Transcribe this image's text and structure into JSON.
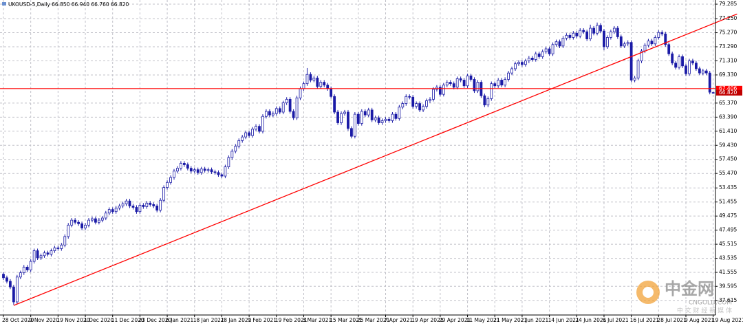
{
  "chart_data": {
    "type": "candlestick",
    "title": "UKOUSD-5,Daily 66.850 66.940 66.760 66.820",
    "color": "#1a1aa6",
    "grid": true,
    "categories": [
      "28 Oct 2020",
      null,
      null,
      null,
      null,
      null,
      null,
      null,
      "9 Nov 2020",
      null,
      null,
      null,
      null,
      null,
      null,
      null,
      "19 Nov 2020",
      null,
      null,
      null,
      null,
      null,
      null,
      null,
      "1 Dec 2020",
      null,
      null,
      null,
      null,
      null,
      null,
      null,
      "11 Dec 2020",
      null,
      null,
      null,
      null,
      null,
      null,
      null,
      "23 Dec 2020",
      null,
      null,
      null,
      null,
      null,
      null,
      null,
      "6 Jan 2021",
      null,
      null,
      null,
      null,
      null,
      null,
      null,
      "18 Jan 2021",
      null,
      null,
      null,
      null,
      null,
      null,
      null,
      "28 Jan 2021",
      null,
      null,
      null,
      null,
      null,
      null,
      null,
      "9 Feb 2021",
      null,
      null,
      null,
      null,
      null,
      null,
      null,
      "19 Feb 2021",
      null,
      null,
      null,
      null,
      null,
      null,
      null,
      "3 Mar 2021",
      null,
      null,
      null,
      null,
      null,
      null,
      null,
      "15 Mar 2021",
      null,
      null,
      null,
      null,
      null,
      null,
      null,
      "25 Mar 2021",
      null,
      null,
      null,
      null,
      null,
      null,
      null,
      "7 Apr 2021",
      null,
      null,
      null,
      null,
      null,
      null,
      null,
      "19 Apr 2021",
      null,
      null,
      null,
      null,
      null,
      null,
      null,
      "29 Apr 2021",
      null,
      null,
      null,
      null,
      null,
      null,
      null,
      "11 May 2021",
      null,
      null,
      null,
      null,
      null,
      null,
      null,
      "21 May 2021",
      null,
      null,
      null,
      null,
      null,
      null,
      null,
      "2 Jun 2021",
      null,
      null,
      null,
      null,
      null,
      null,
      null,
      "14 Jun 2021",
      null,
      null,
      null,
      null,
      null,
      null,
      null,
      "24 Jun 2021",
      null,
      null,
      null,
      null,
      null,
      null,
      null,
      "6 Jul 2021",
      null,
      null,
      null,
      null,
      null,
      null,
      null,
      "16 Jul 2021",
      null,
      null,
      null,
      null,
      null,
      null,
      null,
      "28 Jul 2021",
      null,
      null,
      null,
      null,
      null,
      null,
      null,
      "9 Aug 2021",
      null,
      null,
      null,
      null,
      null,
      null,
      null,
      "19 Aug 2021"
    ],
    "open": [
      41.3,
      40.8,
      40.3,
      39.5,
      37.4,
      40.9,
      41.5,
      42.3,
      41.9,
      43.1,
      44.6,
      43.6,
      43.9,
      44.3,
      44.1,
      44.6,
      45.0,
      44.9,
      45.4,
      46.6,
      48.2,
      48.9,
      48.6,
      48.4,
      47.8,
      48.2,
      48.9,
      49.1,
      48.6,
      48.9,
      49.2,
      49.9,
      50.4,
      50.1,
      50.6,
      50.9,
      51.2,
      51.6,
      50.9,
      50.7,
      50.1,
      51.0,
      50.8,
      51.3,
      51.1,
      50.9,
      50.3,
      51.7,
      53.5,
      54.2,
      54.9,
      55.8,
      56.2,
      56.9,
      56.7,
      56.2,
      55.8,
      56.0,
      55.6,
      56.1,
      55.9,
      56.0,
      55.7,
      55.6,
      55.3,
      55.1,
      56.4,
      57.7,
      58.6,
      59.3,
      60.1,
      60.6,
      61.2,
      60.8,
      61.7,
      62.1,
      61.4,
      63.5,
      64.2,
      63.7,
      63.9,
      64.6,
      64.1,
      65.4,
      65.9,
      64.2,
      63.3,
      66.1,
      67.4,
      68.1,
      69.4,
      68.6,
      68.9,
      67.7,
      68.3,
      67.9,
      67.4,
      66.3,
      64.1,
      62.6,
      63.9,
      64.1,
      61.8,
      60.7,
      63.8,
      62.5,
      64.2,
      63.7,
      64.4,
      63.0,
      63.3,
      62.6,
      62.9,
      63.1,
      62.9,
      63.8,
      63.2,
      64.8,
      65.3,
      66.3,
      66.2,
      64.9,
      65.3,
      64.4,
      64.9,
      65.7,
      65.9,
      67.3,
      67.6,
      66.6,
      67.9,
      68.3,
      68.1,
      67.6,
      68.8,
      68.6,
      67.8,
      69.2,
      68.7,
      67.1,
      68.3,
      66.4,
      65.1,
      66.0,
      68.1,
      67.8,
      68.6,
      67.9,
      68.7,
      69.6,
      70.2,
      70.9,
      71.1,
      70.8,
      71.3,
      71.7,
      71.5,
      72.3,
      71.9,
      72.6,
      73.0,
      72.3,
      73.6,
      74.0,
      73.4,
      74.5,
      74.9,
      74.6,
      75.2,
      74.8,
      75.6,
      75.4,
      74.4,
      75.9,
      75.2,
      76.3,
      75.5,
      73.3,
      74.6,
      75.4,
      75.9,
      74.7,
      73.4,
      73.7,
      73.9,
      68.6,
      68.9,
      71.3,
      72.7,
      73.5,
      74.1,
      73.7,
      74.6,
      75.3,
      75.1,
      73.6,
      72.3,
      71.0,
      70.4,
      71.9,
      70.6,
      69.5,
      71.3,
      71.0,
      70.2,
      69.6,
      69.9,
      69.6,
      66.85
    ],
    "high": [
      41.6,
      41.1,
      40.6,
      39.8,
      41.2,
      41.8,
      42.6,
      42.6,
      43.4,
      44.9,
      44.9,
      44.2,
      44.6,
      44.6,
      44.9,
      45.3,
      45.3,
      45.7,
      46.9,
      48.5,
      49.2,
      49.2,
      48.9,
      48.7,
      48.5,
      49.2,
      49.4,
      49.4,
      49.2,
      49.5,
      50.2,
      50.7,
      50.7,
      50.9,
      51.2,
      51.5,
      51.9,
      51.9,
      51.2,
      51.0,
      51.3,
      51.3,
      51.6,
      51.6,
      51.4,
      51.2,
      52.0,
      53.8,
      54.5,
      55.2,
      56.1,
      56.5,
      57.2,
      57.2,
      57.0,
      56.5,
      56.3,
      56.3,
      56.4,
      56.4,
      56.3,
      56.3,
      56.0,
      55.9,
      55.6,
      56.7,
      58.0,
      58.9,
      59.6,
      60.4,
      60.9,
      61.5,
      61.5,
      62.0,
      62.4,
      62.4,
      63.8,
      64.5,
      64.5,
      64.2,
      64.9,
      64.9,
      65.7,
      66.2,
      66.2,
      64.5,
      66.4,
      67.7,
      68.4,
      70.3,
      69.7,
      69.2,
      69.2,
      68.6,
      68.6,
      68.2,
      67.7,
      66.6,
      64.4,
      64.2,
      64.4,
      64.4,
      62.1,
      64.1,
      64.1,
      64.5,
      64.5,
      64.7,
      64.7,
      63.6,
      63.6,
      63.2,
      63.4,
      63.4,
      64.1,
      64.1,
      65.1,
      65.6,
      66.6,
      66.6,
      66.5,
      65.6,
      65.6,
      65.2,
      66.0,
      66.2,
      67.6,
      67.9,
      67.9,
      68.2,
      68.6,
      68.6,
      68.4,
      69.1,
      69.1,
      68.9,
      69.5,
      69.5,
      69.0,
      68.6,
      68.6,
      66.7,
      66.3,
      68.4,
      68.4,
      68.9,
      68.9,
      69.0,
      69.9,
      70.5,
      71.2,
      71.4,
      71.4,
      71.6,
      72.0,
      72.0,
      72.6,
      72.6,
      72.9,
      73.3,
      73.3,
      73.9,
      74.3,
      74.3,
      74.8,
      75.2,
      75.2,
      75.5,
      75.5,
      75.9,
      75.9,
      75.7,
      76.4,
      76.2,
      76.7,
      76.6,
      75.8,
      74.9,
      75.7,
      76.2,
      76.2,
      75.0,
      74.0,
      74.2,
      74.2,
      69.2,
      71.6,
      73.0,
      73.8,
      74.4,
      74.4,
      74.9,
      75.6,
      75.6,
      75.4,
      73.9,
      72.6,
      71.3,
      72.2,
      72.2,
      70.9,
      71.6,
      71.6,
      71.3,
      70.5,
      70.2,
      70.2,
      69.9,
      66.94
    ],
    "low": [
      40.5,
      40.0,
      39.2,
      37.0,
      37.1,
      40.6,
      41.2,
      41.6,
      41.6,
      42.8,
      43.3,
      43.3,
      43.6,
      43.8,
      43.8,
      44.3,
      44.6,
      44.6,
      45.1,
      46.3,
      47.9,
      48.3,
      48.1,
      47.5,
      47.5,
      47.9,
      48.6,
      48.3,
      48.3,
      48.6,
      48.9,
      49.6,
      49.8,
      49.8,
      50.3,
      50.6,
      50.9,
      50.6,
      50.4,
      49.8,
      49.8,
      50.5,
      50.5,
      50.8,
      50.6,
      50.0,
      50.0,
      51.4,
      53.2,
      53.9,
      54.6,
      55.5,
      55.9,
      56.4,
      55.9,
      55.5,
      55.5,
      55.3,
      55.3,
      55.6,
      55.6,
      55.4,
      55.3,
      55.0,
      54.8,
      54.8,
      56.1,
      57.4,
      58.3,
      59.0,
      59.8,
      60.3,
      60.5,
      60.5,
      61.4,
      61.1,
      61.1,
      63.2,
      63.4,
      63.4,
      63.6,
      63.8,
      63.8,
      65.1,
      63.9,
      63.0,
      63.0,
      65.8,
      67.1,
      67.8,
      68.3,
      68.3,
      67.4,
      67.4,
      67.6,
      67.1,
      66.0,
      63.8,
      62.3,
      62.3,
      63.6,
      61.5,
      60.4,
      60.4,
      62.2,
      62.2,
      63.4,
      63.4,
      62.7,
      62.7,
      62.3,
      62.3,
      62.6,
      62.6,
      62.6,
      62.9,
      62.9,
      64.5,
      65.0,
      65.9,
      64.6,
      64.6,
      64.1,
      64.1,
      64.6,
      65.4,
      65.6,
      67.0,
      66.3,
      66.3,
      67.6,
      67.8,
      67.3,
      67.3,
      68.3,
      67.5,
      67.5,
      68.4,
      66.8,
      66.8,
      66.1,
      64.8,
      64.8,
      65.7,
      67.5,
      67.5,
      67.6,
      67.6,
      68.4,
      69.3,
      69.9,
      70.6,
      70.5,
      70.5,
      71.0,
      71.2,
      71.2,
      71.6,
      71.6,
      72.3,
      72.0,
      72.0,
      73.3,
      73.1,
      73.1,
      74.2,
      74.3,
      74.3,
      74.5,
      74.5,
      75.1,
      74.1,
      74.1,
      74.9,
      74.9,
      75.2,
      72.8,
      73.0,
      74.3,
      75.1,
      74.4,
      73.1,
      73.1,
      73.4,
      68.3,
      68.3,
      68.6,
      71.0,
      72.4,
      73.2,
      73.4,
      73.4,
      74.3,
      74.8,
      73.3,
      72.0,
      70.7,
      70.1,
      70.1,
      70.3,
      69.2,
      69.2,
      70.7,
      69.9,
      69.3,
      69.3,
      69.3,
      66.6,
      66.76
    ],
    "close": [
      40.8,
      40.3,
      39.5,
      37.4,
      40.9,
      41.5,
      42.3,
      41.9,
      43.1,
      44.6,
      43.6,
      43.9,
      44.3,
      44.1,
      44.6,
      45.0,
      44.9,
      45.4,
      46.6,
      48.2,
      48.9,
      48.6,
      48.4,
      47.8,
      48.2,
      48.9,
      49.1,
      48.6,
      48.9,
      49.2,
      49.9,
      50.4,
      50.1,
      50.6,
      50.9,
      51.2,
      51.6,
      50.9,
      50.7,
      50.1,
      51.0,
      50.8,
      51.3,
      51.1,
      50.9,
      50.3,
      51.7,
      53.5,
      54.2,
      54.9,
      55.8,
      56.2,
      56.9,
      56.7,
      56.2,
      55.8,
      56.0,
      55.6,
      56.1,
      55.9,
      56.0,
      55.7,
      55.6,
      55.3,
      55.1,
      56.4,
      57.7,
      58.6,
      59.3,
      60.1,
      60.6,
      61.2,
      60.8,
      61.7,
      62.1,
      61.4,
      63.5,
      64.2,
      63.7,
      63.9,
      64.6,
      64.1,
      65.4,
      65.9,
      64.2,
      63.3,
      66.1,
      67.4,
      68.1,
      69.4,
      68.6,
      68.9,
      67.7,
      68.3,
      67.9,
      67.4,
      66.3,
      64.1,
      62.6,
      63.9,
      64.1,
      61.8,
      60.7,
      63.8,
      62.5,
      64.2,
      63.7,
      64.4,
      63.0,
      63.3,
      62.6,
      62.9,
      63.1,
      62.9,
      63.8,
      63.2,
      64.8,
      65.3,
      66.3,
      66.2,
      64.9,
      65.3,
      64.4,
      64.9,
      65.7,
      65.9,
      67.3,
      67.6,
      66.6,
      67.9,
      68.3,
      68.1,
      67.6,
      68.8,
      68.6,
      67.8,
      69.2,
      68.7,
      67.1,
      68.3,
      66.4,
      65.1,
      66.0,
      68.1,
      67.8,
      68.6,
      67.9,
      68.7,
      69.6,
      70.2,
      70.9,
      71.1,
      70.8,
      71.3,
      71.7,
      71.5,
      72.3,
      71.9,
      72.6,
      73.0,
      72.3,
      73.6,
      74.0,
      73.4,
      74.5,
      74.9,
      74.6,
      75.2,
      74.8,
      75.6,
      75.4,
      74.4,
      75.9,
      75.2,
      76.3,
      75.5,
      73.3,
      74.6,
      75.4,
      75.9,
      74.7,
      73.4,
      73.7,
      73.9,
      68.6,
      68.9,
      71.3,
      72.7,
      73.5,
      74.1,
      73.7,
      74.6,
      75.3,
      75.1,
      73.6,
      72.3,
      71.0,
      70.4,
      71.9,
      70.6,
      69.5,
      71.3,
      71.0,
      70.2,
      69.6,
      69.9,
      69.6,
      66.9,
      66.82
    ],
    "ylim": [
      35.56,
      79.87
    ],
    "yticks": [
      79.285,
      {
        "value": 77.25,
        "label": "77.250"
      },
      {
        "value": 75.27,
        "label": "75.270"
      },
      {
        "value": 73.29,
        "label": "73.290"
      },
      {
        "value": 71.31,
        "label": "71.310"
      },
      {
        "value": 69.33,
        "label": "69.330"
      },
      {
        "value": 65.37,
        "label": "65.370"
      },
      {
        "value": 63.39,
        "label": "63.390"
      },
      {
        "value": 61.41,
        "label": "61.410"
      },
      {
        "value": 59.43,
        "label": "59.430"
      },
      {
        "value": 57.45,
        "label": "57.450"
      },
      {
        "value": 55.47,
        "label": "55.470"
      },
      53.435,
      51.455,
      49.475,
      47.495,
      45.515,
      43.535,
      41.555,
      39.595,
      37.615
    ],
    "price_lines": [
      {
        "value": 67.406,
        "color": "#ff0000"
      }
    ],
    "current_price": {
      "value": 66.82,
      "label": "66.820"
    },
    "trend_line": {
      "color": "#ff0000",
      "start": {
        "index": 3,
        "price": 36.9
      },
      "end": {
        "index": 215,
        "price": 77.9
      }
    },
    "watermark": {
      "brand": "中金网",
      "site": "CNGOLD.COM",
      "slogan": "中 文 财 经 新 媒 体"
    }
  }
}
